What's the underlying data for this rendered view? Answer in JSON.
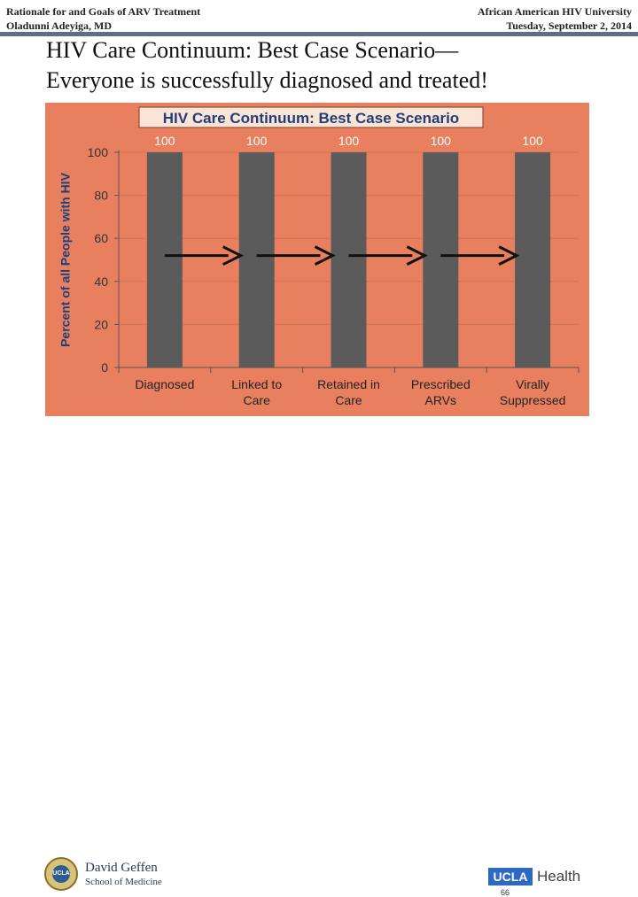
{
  "header": {
    "left_line1": "Rationale for and Goals of ARV Treatment",
    "left_line2": "Oladunni Adeyiga, MD",
    "right_line1": "African American HIV University",
    "right_line2": "Tuesday, September 2, 2014"
  },
  "slide": {
    "title_line1": "HIV Care Continuum:  Best Case Scenario—",
    "title_line2": "Everyone is successfully diagnosed and treated!"
  },
  "colors": {
    "chart_bg": "#e8805f",
    "bar": "#5b5b5b",
    "gridline": "#cc7356",
    "title_box": "#fbe3d6",
    "title_text": "#1f3f7a",
    "bar_label": "#ffffff",
    "arrow": "#111111"
  },
  "chart_data": {
    "type": "bar",
    "title": "HIV Care Continuum:  Best Case Scenario",
    "categories": [
      [
        "Diagnosed"
      ],
      [
        "Linked to",
        "Care"
      ],
      [
        "Retained in",
        "Care"
      ],
      [
        "Prescribed",
        "ARVs"
      ],
      [
        "Virally",
        "Suppressed"
      ]
    ],
    "values": [
      100,
      100,
      100,
      100,
      100
    ],
    "ylabel": "Percent of all People with HIV",
    "xlabel": "",
    "ylim": [
      0,
      100
    ],
    "yticks": [
      0,
      20,
      40,
      60,
      80,
      100
    ],
    "grid": true,
    "arrow_level": 52,
    "arrows": [
      [
        0,
        1
      ],
      [
        1,
        2
      ],
      [
        2,
        3
      ],
      [
        3,
        4
      ]
    ]
  },
  "footer": {
    "seal_text": "UCLA",
    "school_name": "David Geffen",
    "school_sub": "School of Medicine",
    "ucla_logo": "UCLA",
    "health_logo": "Health",
    "page_number": "66"
  }
}
